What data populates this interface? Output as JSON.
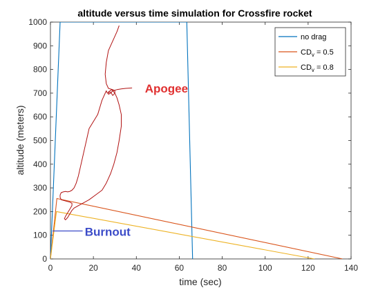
{
  "chart_data": {
    "type": "line",
    "title": "altitude versus time simulation for Crossfire rocket",
    "xlabel": "time (sec)",
    "ylabel": "altitude (meters)",
    "xlim": [
      0,
      140
    ],
    "ylim": [
      0,
      1000
    ],
    "xticks": [
      0,
      20,
      40,
      60,
      80,
      100,
      120,
      140
    ],
    "yticks": [
      0,
      100,
      200,
      300,
      400,
      500,
      600,
      700,
      800,
      900,
      1000
    ],
    "grid": false,
    "legend_position": "top-right",
    "series": [
      {
        "label": "no drag",
        "color": "#0072BD",
        "x": [
          0,
          4.5,
          63.5,
          66.2
        ],
        "y": [
          0,
          1000,
          1000,
          0
        ]
      },
      {
        "label": "CD",
        "label_sub": "v",
        "label_suffix": " = 0.5",
        "color": "#D95319",
        "x": [
          0,
          3,
          136
        ],
        "y": [
          0,
          255,
          0
        ]
      },
      {
        "label": "CD",
        "label_sub": "v",
        "label_suffix": " = 0.8",
        "color": "#EDB120",
        "x": [
          0,
          2.8,
          123
        ],
        "y": [
          0,
          200,
          0
        ]
      }
    ],
    "annotations": [
      {
        "text": "Apogee",
        "color": "#E03030",
        "x": 44,
        "y": 720
      },
      {
        "text": "Burnout",
        "color": "#3B4BC8",
        "x": 16,
        "y": 115
      }
    ],
    "burnout_marker": {
      "color": "#3B4BC8",
      "x": [
        1,
        15
      ],
      "y": [
        118,
        118
      ]
    },
    "handwritten_curve": {
      "color": "#B01010",
      "x": [
        32,
        31,
        29,
        27,
        26,
        25.5,
        26,
        27,
        29,
        30,
        30,
        29,
        28,
        26.5,
        26,
        25,
        24,
        23,
        22,
        20,
        18,
        17,
        16,
        15,
        14,
        13,
        12,
        11,
        10,
        9,
        8,
        7,
        6,
        5,
        4.5,
        4.5,
        5,
        7,
        9,
        10,
        10,
        9,
        8,
        7,
        6.5,
        7,
        8,
        9,
        10,
        11,
        13,
        15,
        18,
        21,
        24,
        26,
        28,
        29.5,
        31,
        32,
        33,
        33,
        32,
        31,
        30,
        28.5,
        27,
        27,
        28,
        29,
        31,
        33,
        35,
        38
      ],
      "y": [
        985,
        960,
        920,
        880,
        830,
        780,
        740,
        720,
        715,
        710,
        700,
        690,
        705,
        700,
        710,
        690,
        670,
        640,
        610,
        580,
        550,
        510,
        470,
        430,
        390,
        350,
        320,
        300,
        290,
        285,
        283,
        285,
        283,
        280,
        270,
        260,
        250,
        245,
        240,
        235,
        225,
        210,
        195,
        180,
        170,
        165,
        175,
        190,
        205,
        215,
        225,
        235,
        250,
        270,
        290,
        320,
        360,
        400,
        450,
        500,
        560,
        610,
        650,
        680,
        700,
        715,
        705,
        695,
        700,
        710,
        715,
        718,
        720,
        722
      ]
    }
  }
}
